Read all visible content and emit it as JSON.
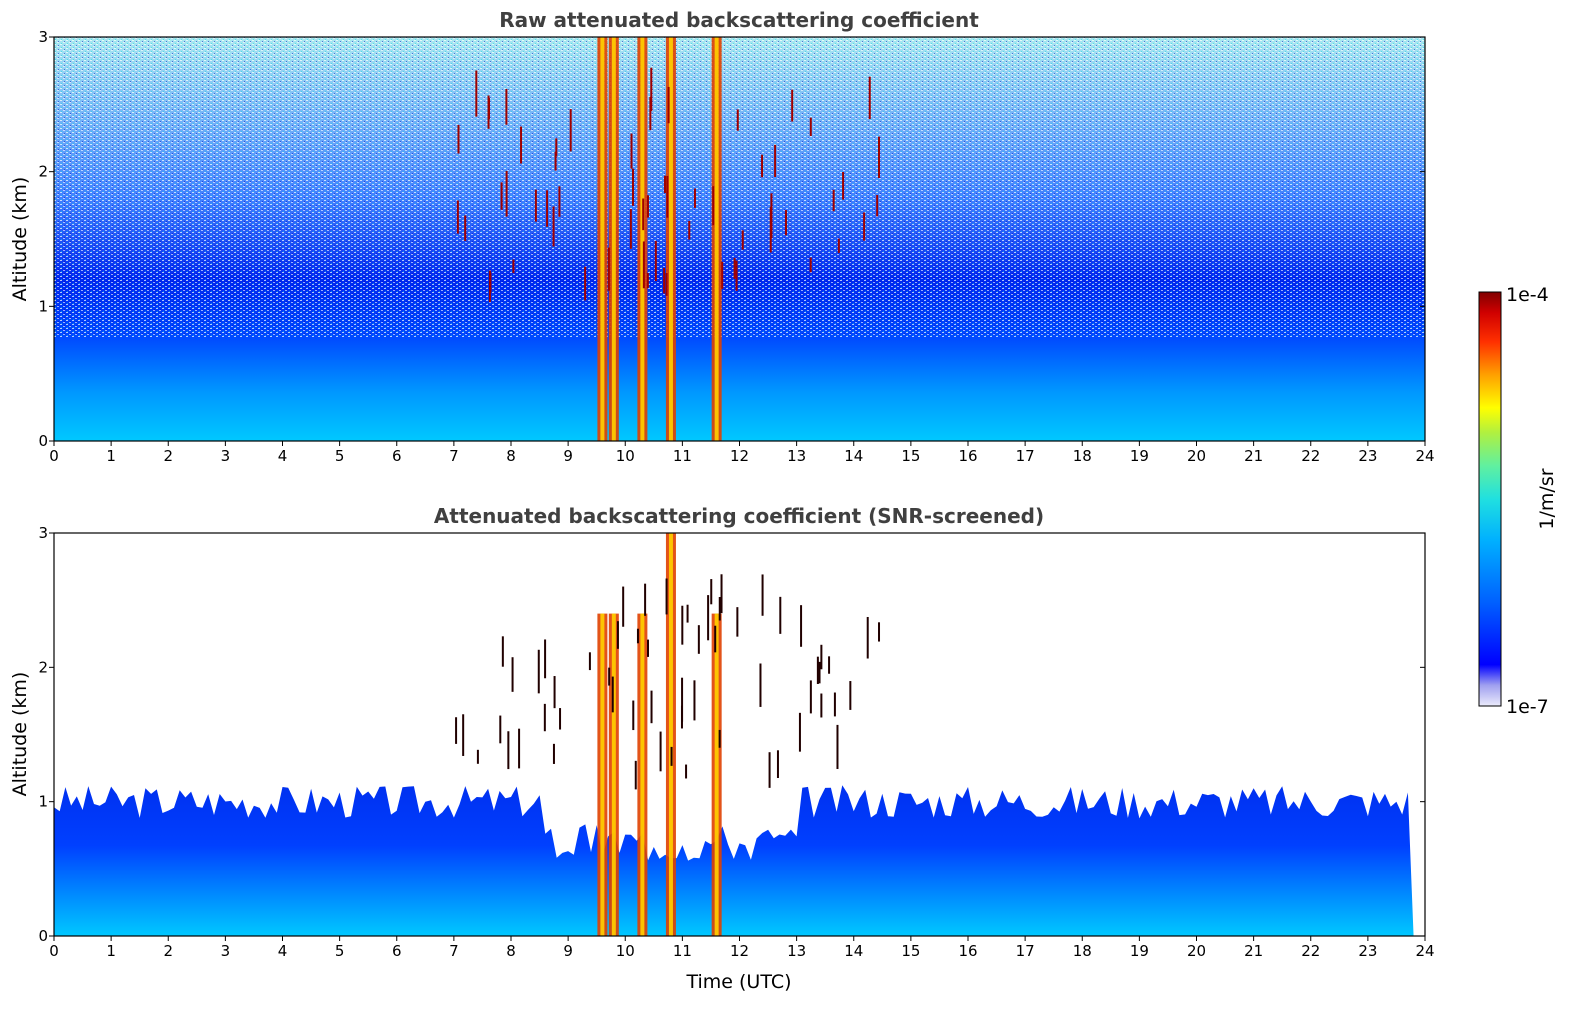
{
  "chart_data": [
    {
      "type": "heatmap",
      "title": "Raw attenuated backscattering coefficient",
      "xlabel": "",
      "ylabel": "Altitude (km)",
      "xlim": [
        0,
        24
      ],
      "ylim": [
        0,
        3
      ],
      "xticks": [
        "0",
        "1",
        "2",
        "3",
        "4",
        "5",
        "6",
        "7",
        "8",
        "9",
        "10",
        "11",
        "12",
        "13",
        "14",
        "15",
        "16",
        "17",
        "18",
        "19",
        "20",
        "21",
        "22",
        "23",
        "24"
      ],
      "yticks": [
        "0",
        "1",
        "2",
        "3"
      ],
      "screened": false,
      "features": {
        "boundary_layer_top_km": 1.0,
        "noise_above_boundary_layer": true,
        "intense_columns_utc": [
          9.6,
          9.8,
          10.3,
          10.8,
          11.6
        ],
        "cloud_period_utc": [
          7.0,
          14.5
        ]
      }
    },
    {
      "type": "heatmap",
      "title": "Attenuated backscattering coefficient (SNR-screened)",
      "xlabel": "Time (UTC)",
      "ylabel": "Altitude (km)",
      "xlim": [
        0,
        24
      ],
      "ylim": [
        0,
        3
      ],
      "xticks": [
        "0",
        "1",
        "2",
        "3",
        "4",
        "5",
        "6",
        "7",
        "8",
        "9",
        "10",
        "11",
        "12",
        "13",
        "14",
        "15",
        "16",
        "17",
        "18",
        "19",
        "20",
        "21",
        "22",
        "23",
        "24"
      ],
      "yticks": [
        "0",
        "1",
        "2",
        "3"
      ],
      "screened": true,
      "features": {
        "boundary_layer_top_km": 1.0,
        "noise_above_boundary_layer": false,
        "intense_columns_utc": [
          9.6,
          9.8,
          10.3,
          10.8,
          11.6
        ],
        "cloud_period_utc": [
          7.0,
          14.5
        ]
      }
    }
  ],
  "colorbar": {
    "label": "1/m/sr",
    "max_label": "1e-4",
    "min_label": "1e-7",
    "scale": "log",
    "range": [
      1e-07,
      0.0001
    ],
    "colors": [
      "#ebebfb",
      "#a0a0f0",
      "#0000ff",
      "#0040ff",
      "#0080ff",
      "#00c0ff",
      "#20e0e0",
      "#60f0a0",
      "#a0f060",
      "#ffff00",
      "#ffa000",
      "#ff4000",
      "#d00000",
      "#800000"
    ]
  }
}
